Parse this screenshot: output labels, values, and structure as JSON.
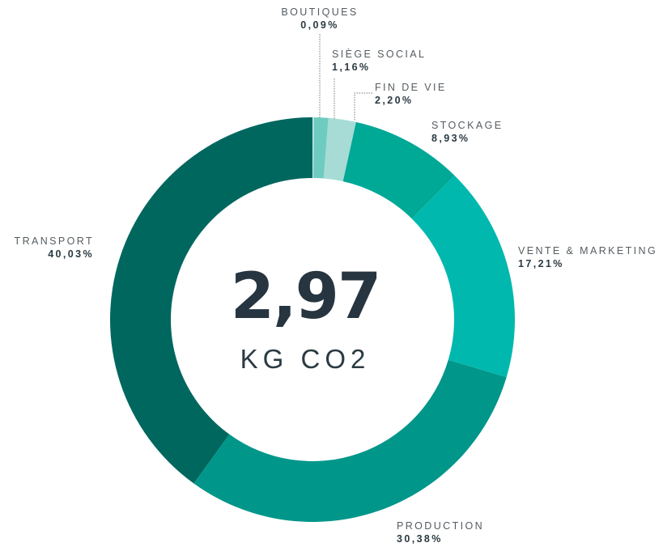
{
  "chart_data": {
    "type": "donut",
    "center_value": "2,97",
    "center_unit": "KG CO2",
    "categories": [
      "BOUTIQUES",
      "SIÈGE SOCIAL",
      "FIN DE VIE",
      "STOCKAGE",
      "VENTE & MARKETING",
      "PRODUCTION",
      "TRANSPORT"
    ],
    "values": [
      0.09,
      1.16,
      2.2,
      8.93,
      17.21,
      30.38,
      40.03
    ],
    "value_labels": [
      "0,09%",
      "1,16%",
      "2,20%",
      "8,93%",
      "17,21%",
      "30,38%",
      "40,03%"
    ],
    "colors": [
      "#cdeeea",
      "#6ecbc0",
      "#a6dcd5",
      "#00a896",
      "#00b8ad",
      "#00968a",
      "#00675f"
    ]
  }
}
